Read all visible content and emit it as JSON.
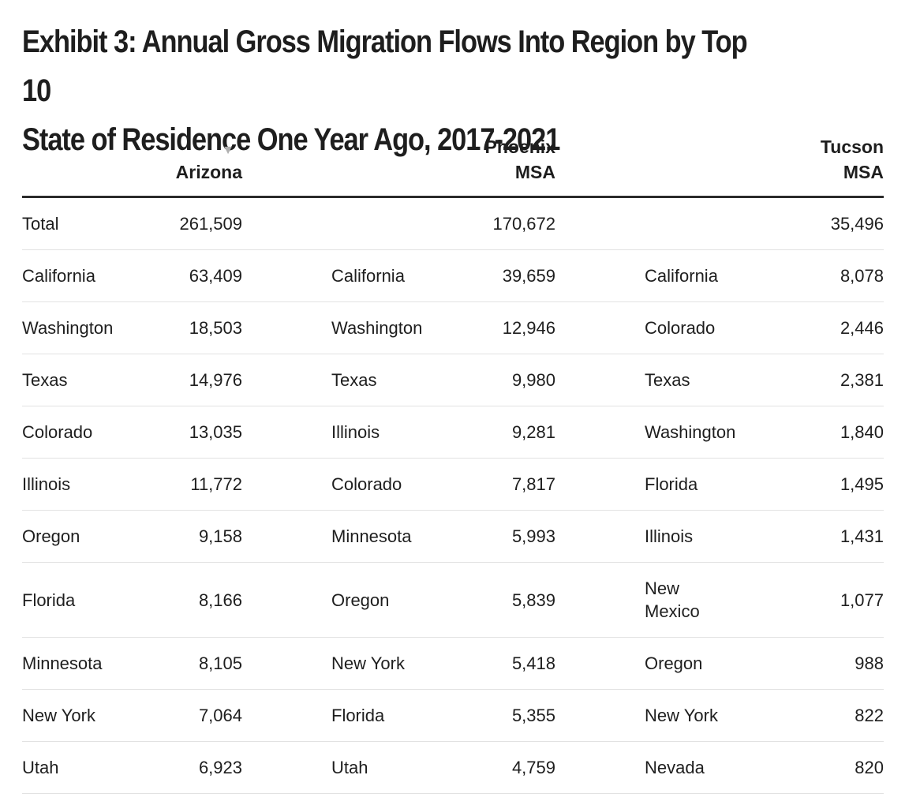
{
  "chart_data": {
    "type": "table",
    "title": "Exhibit 3: Annual Gross Migration Flows Into Region by Top 10 State of Residence One Year Ago, 2017-2021",
    "title_lines": [
      "Exhibit 3: Annual Gross Migration Flows Into Region by Top 10",
      "State of Residence One Year Ago, 2017-2021"
    ],
    "sort_indicator": "▼",
    "columns": [
      {
        "header_lines": [
          "Arizona"
        ],
        "sorted": true
      },
      {
        "header_lines": [
          "Phoenix",
          "MSA"
        ],
        "sorted": false
      },
      {
        "header_lines": [
          "Tucson",
          "MSA"
        ],
        "sorted": false
      }
    ],
    "totals": {
      "label": "Total",
      "arizona": "261,509",
      "phoenix": "170,672",
      "tucson": "35,496"
    },
    "rows": [
      {
        "arizona_state": "California",
        "arizona_value": "63,409",
        "phoenix_state": "California",
        "phoenix_value": "39,659",
        "tucson_state_lines": [
          "California"
        ],
        "tucson_value": "8,078"
      },
      {
        "arizona_state": "Washington",
        "arizona_value": "18,503",
        "phoenix_state": "Washington",
        "phoenix_value": "12,946",
        "tucson_state_lines": [
          "Colorado"
        ],
        "tucson_value": "2,446"
      },
      {
        "arizona_state": "Texas",
        "arizona_value": "14,976",
        "phoenix_state": "Texas",
        "phoenix_value": "9,980",
        "tucson_state_lines": [
          "Texas"
        ],
        "tucson_value": "2,381"
      },
      {
        "arizona_state": "Colorado",
        "arizona_value": "13,035",
        "phoenix_state": "Illinois",
        "phoenix_value": "9,281",
        "tucson_state_lines": [
          "Washington"
        ],
        "tucson_value": "1,840"
      },
      {
        "arizona_state": "Illinois",
        "arizona_value": "11,772",
        "phoenix_state": "Colorado",
        "phoenix_value": "7,817",
        "tucson_state_lines": [
          "Florida"
        ],
        "tucson_value": "1,495"
      },
      {
        "arizona_state": "Oregon",
        "arizona_value": "9,158",
        "phoenix_state": "Minnesota",
        "phoenix_value": "5,993",
        "tucson_state_lines": [
          "Illinois"
        ],
        "tucson_value": "1,431"
      },
      {
        "arizona_state": "Florida",
        "arizona_value": "8,166",
        "phoenix_state": "Oregon",
        "phoenix_value": "5,839",
        "tucson_state_lines": [
          "New",
          "Mexico"
        ],
        "tucson_value": "1,077"
      },
      {
        "arizona_state": "Minnesota",
        "arizona_value": "8,105",
        "phoenix_state": "New York",
        "phoenix_value": "5,418",
        "tucson_state_lines": [
          "Oregon"
        ],
        "tucson_value": "988"
      },
      {
        "arizona_state": "New York",
        "arizona_value": "7,064",
        "phoenix_state": "Florida",
        "phoenix_value": "5,355",
        "tucson_state_lines": [
          "New York"
        ],
        "tucson_value": "822"
      },
      {
        "arizona_state": "Utah",
        "arizona_value": "6,923",
        "phoenix_state": "Utah",
        "phoenix_value": "4,759",
        "tucson_state_lines": [
          "Nevada"
        ],
        "tucson_value": "820"
      }
    ]
  }
}
